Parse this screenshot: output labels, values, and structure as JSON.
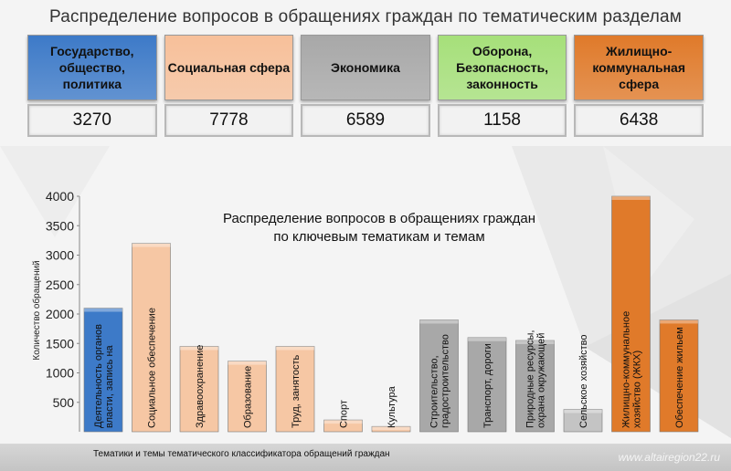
{
  "page_title": "Распределение вопросов в обращениях граждан по тематическим разделам",
  "categories": [
    {
      "label": "Государство, общество, политика",
      "value": "3270",
      "color": "#3d7ac8"
    },
    {
      "label": "Социальная сфера",
      "value": "7778",
      "color": "#f7c09a"
    },
    {
      "label": "Экономика",
      "value": "6589",
      "color": "#a8a8a8"
    },
    {
      "label": "Оборона, Безопасность, законность",
      "value": "1158",
      "color": "#a6e07a"
    },
    {
      "label": "Жилищно-коммунальная сфера",
      "value": "6438",
      "color": "#e07a2a"
    }
  ],
  "footer": {
    "xlabel": "Тематики и темы тематического классификатора обращений граждан",
    "watermark": "www.altairegion22.ru"
  },
  "chart_data": {
    "type": "bar",
    "title_line1": "Распределение вопросов в обращениях граждан",
    "title_line2": "по ключевым тематикам и темам",
    "ylabel": "Количество обращений",
    "ylim": [
      0,
      4000
    ],
    "yticks": [
      "500",
      "1000",
      "1500",
      "2000",
      "2500",
      "3000",
      "3500",
      "4000"
    ],
    "categories": [
      "Деятельность органов власти, запись на личный прием",
      "Социальное обеспечение",
      "Здравоохранение",
      "Образование",
      "Труд, занятость",
      "Спорт",
      "Культура",
      "Строительство, градостроительство",
      "Транспорт, дороги",
      "Природные ресурсы, охрана окружающей среды",
      "Сельское хозяйство",
      "Жилищно-коммунальное хозяйство (ЖКХ)",
      "Обеспечение жильем"
    ],
    "values": [
      2100,
      3200,
      1450,
      1200,
      1450,
      200,
      90,
      1900,
      1600,
      1550,
      380,
      4000,
      1900
    ],
    "bar_colors": [
      "#3d7ac8",
      "#f6c7a4",
      "#f6c7a4",
      "#f6c7a4",
      "#f6c7a4",
      "#f6c7a4",
      "#f6c7a4",
      "#a8a8a8",
      "#a8a8a8",
      "#a8a8a8",
      "#c4c4c4",
      "#e07a2a",
      "#e07a2a"
    ]
  }
}
